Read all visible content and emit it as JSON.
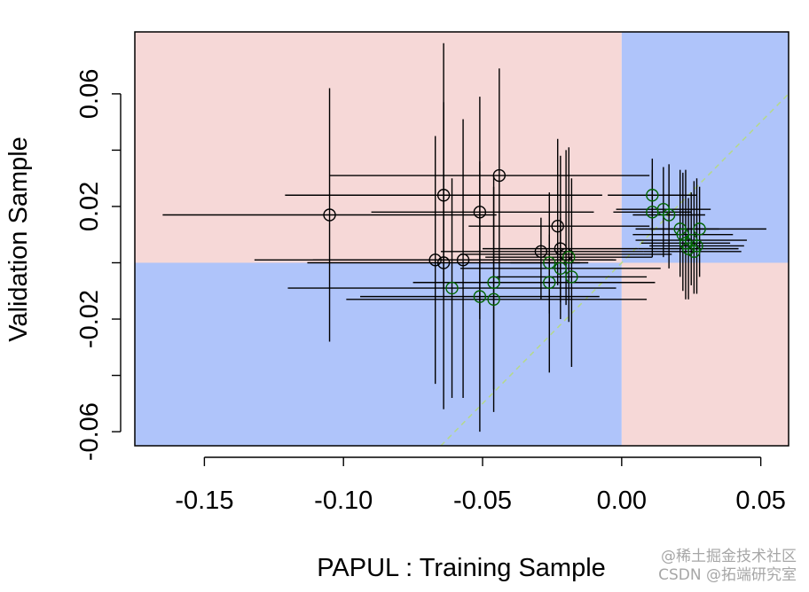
{
  "chart_data": {
    "type": "scatter",
    "xlabel": "PAPUL : Training Sample",
    "ylabel": "Validation Sample",
    "xlim": [
      -0.175,
      0.06
    ],
    "ylim": [
      -0.065,
      0.082
    ],
    "xticks": [
      -0.15,
      -0.1,
      -0.05,
      0.0,
      0.05
    ],
    "xtick_labels": [
      "-0.15",
      "-0.10",
      "-0.05",
      "0.00",
      "0.05"
    ],
    "yticks": [
      -0.06,
      -0.04,
      -0.02,
      0.0,
      0.02,
      0.04,
      0.06
    ],
    "ytick_labels": [
      "-0.06",
      "",
      "-0.02",
      "",
      "0.02",
      "",
      "0.06"
    ],
    "quadrant_colors": {
      "concordant": "#afc4fa",
      "discordant": "#f6d8d7"
    },
    "reference_line": {
      "slope": 1,
      "intercept": 0,
      "color": "#b5d98a",
      "style": "dashed"
    },
    "grid": false,
    "legend": "none",
    "points": [
      {
        "x": -0.105,
        "y": 0.017,
        "xlo": -0.165,
        "xhi": -0.045,
        "ylo": -0.028,
        "yhi": 0.062,
        "color": "#000000"
      },
      {
        "x": -0.044,
        "y": 0.031,
        "xlo": -0.105,
        "xhi": 0.01,
        "ylo": -0.008,
        "yhi": 0.069,
        "color": "#000000"
      },
      {
        "x": -0.064,
        "y": 0.024,
        "xlo": -0.121,
        "xhi": -0.007,
        "ylo": -0.009,
        "yhi": 0.057,
        "color": "#000000"
      },
      {
        "x": -0.051,
        "y": 0.018,
        "xlo": -0.09,
        "xhi": -0.01,
        "ylo": -0.02,
        "yhi": 0.059,
        "color": "#000000"
      },
      {
        "x": -0.023,
        "y": 0.013,
        "xlo": -0.055,
        "xhi": 0.01,
        "ylo": -0.008,
        "yhi": 0.044,
        "color": "#000000"
      },
      {
        "x": -0.029,
        "y": 0.004,
        "xlo": -0.065,
        "xhi": 0.008,
        "ylo": -0.013,
        "yhi": 0.016,
        "color": "#000000"
      },
      {
        "x": -0.022,
        "y": 0.005,
        "xlo": -0.05,
        "xhi": 0.006,
        "ylo": -0.014,
        "yhi": 0.038,
        "color": "#000000"
      },
      {
        "x": -0.067,
        "y": 0.001,
        "xlo": -0.132,
        "xhi": -0.002,
        "ylo": -0.043,
        "yhi": 0.045,
        "color": "#000000"
      },
      {
        "x": -0.064,
        "y": 0.0,
        "xlo": -0.113,
        "xhi": -0.015,
        "ylo": -0.052,
        "yhi": 0.078,
        "color": "#000000"
      },
      {
        "x": -0.057,
        "y": 0.001,
        "xlo": -0.111,
        "xhi": -0.003,
        "ylo": -0.048,
        "yhi": 0.051,
        "color": "#000000"
      },
      {
        "x": -0.02,
        "y": 0.003,
        "xlo": -0.058,
        "xhi": 0.018,
        "ylo": -0.015,
        "yhi": 0.04,
        "color": "#000000"
      },
      {
        "x": -0.019,
        "y": 0.002,
        "xlo": -0.049,
        "xhi": 0.011,
        "ylo": -0.021,
        "yhi": 0.041,
        "color": "#006400"
      },
      {
        "x": -0.026,
        "y": 0.0,
        "xlo": -0.04,
        "xhi": -0.012,
        "ylo": -0.018,
        "yhi": 0.01,
        "color": "#006400"
      },
      {
        "x": -0.022,
        "y": -0.002,
        "xlo": -0.058,
        "xhi": 0.014,
        "ylo": -0.02,
        "yhi": 0.016,
        "color": "#006400"
      },
      {
        "x": -0.018,
        "y": -0.005,
        "xlo": -0.045,
        "xhi": 0.009,
        "ylo": -0.037,
        "yhi": 0.03,
        "color": "#006400"
      },
      {
        "x": -0.026,
        "y": -0.007,
        "xlo": -0.065,
        "xhi": 0.012,
        "ylo": -0.039,
        "yhi": 0.025,
        "color": "#006400"
      },
      {
        "x": -0.061,
        "y": -0.009,
        "xlo": -0.12,
        "xhi": -0.002,
        "ylo": -0.048,
        "yhi": 0.03,
        "color": "#006400"
      },
      {
        "x": -0.046,
        "y": -0.007,
        "xlo": -0.075,
        "xhi": -0.016,
        "ylo": -0.045,
        "yhi": 0.031,
        "color": "#006400"
      },
      {
        "x": -0.051,
        "y": -0.012,
        "xlo": -0.094,
        "xhi": -0.008,
        "ylo": -0.06,
        "yhi": 0.036,
        "color": "#006400"
      },
      {
        "x": -0.046,
        "y": -0.013,
        "xlo": -0.099,
        "xhi": 0.009,
        "ylo": -0.053,
        "yhi": 0.027,
        "color": "#006400"
      },
      {
        "x": 0.011,
        "y": 0.024,
        "xlo": -0.005,
        "xhi": 0.027,
        "ylo": 0.011,
        "yhi": 0.033,
        "color": "#006400"
      },
      {
        "x": 0.015,
        "y": 0.019,
        "xlo": -0.002,
        "xhi": 0.032,
        "ylo": 0.002,
        "yhi": 0.034,
        "color": "#006400"
      },
      {
        "x": 0.011,
        "y": 0.018,
        "xlo": -0.003,
        "xhi": 0.025,
        "ylo": 0.002,
        "yhi": 0.037,
        "color": "#006400"
      },
      {
        "x": 0.017,
        "y": 0.017,
        "xlo": 0.004,
        "xhi": 0.03,
        "ylo": -0.002,
        "yhi": 0.035,
        "color": "#006400"
      },
      {
        "x": 0.021,
        "y": 0.012,
        "xlo": 0.005,
        "xhi": 0.035,
        "ylo": -0.005,
        "yhi": 0.033,
        "color": "#006400"
      },
      {
        "x": 0.022,
        "y": 0.01,
        "xlo": 0.004,
        "xhi": 0.04,
        "ylo": -0.01,
        "yhi": 0.032,
        "color": "#006400"
      },
      {
        "x": 0.028,
        "y": 0.012,
        "xlo": 0.01,
        "xhi": 0.052,
        "ylo": -0.005,
        "yhi": 0.027,
        "color": "#006400"
      },
      {
        "x": 0.025,
        "y": 0.008,
        "xlo": 0.005,
        "xhi": 0.045,
        "ylo": -0.008,
        "yhi": 0.025,
        "color": "#006400"
      },
      {
        "x": 0.023,
        "y": 0.007,
        "xlo": 0.007,
        "xhi": 0.039,
        "ylo": -0.013,
        "yhi": 0.033,
        "color": "#006400"
      },
      {
        "x": 0.027,
        "y": 0.006,
        "xlo": 0.01,
        "xhi": 0.044,
        "ylo": -0.011,
        "yhi": 0.03,
        "color": "#006400"
      },
      {
        "x": 0.024,
        "y": 0.005,
        "xlo": 0.006,
        "xhi": 0.042,
        "ylo": -0.013,
        "yhi": 0.023,
        "color": "#006400"
      },
      {
        "x": 0.026,
        "y": 0.004,
        "xlo": 0.008,
        "xhi": 0.043,
        "ylo": -0.011,
        "yhi": 0.029,
        "color": "#006400"
      }
    ]
  },
  "watermark": {
    "line1": "@稀土掘金技术社区",
    "line2": "CSDN @拓端研究室"
  }
}
